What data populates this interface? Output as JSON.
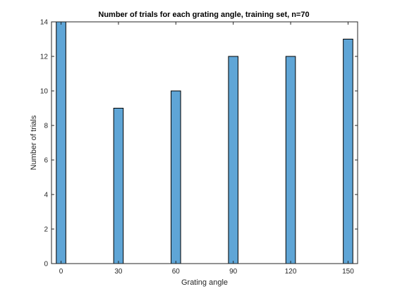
{
  "chart_data": {
    "type": "bar",
    "title": "Number of trials for each grating angle, training set, n=70",
    "xlabel": "Grating angle",
    "ylabel": "Number of trials",
    "categories": [
      0,
      30,
      60,
      90,
      120,
      150
    ],
    "values": [
      14,
      9,
      10,
      12,
      12,
      13
    ],
    "x_ticks": [
      "0",
      "30",
      "60",
      "90",
      "120",
      "150"
    ],
    "y_ticks": [
      "0",
      "2",
      "4",
      "6",
      "8",
      "10",
      "12",
      "14"
    ],
    "xlim": [
      -5,
      155
    ],
    "ylim": [
      0,
      14
    ],
    "bar_width": 5,
    "bar_color": "#5fa5d6",
    "bar_edge_color": "#000000",
    "grid": false,
    "box": true,
    "legend": "none"
  }
}
